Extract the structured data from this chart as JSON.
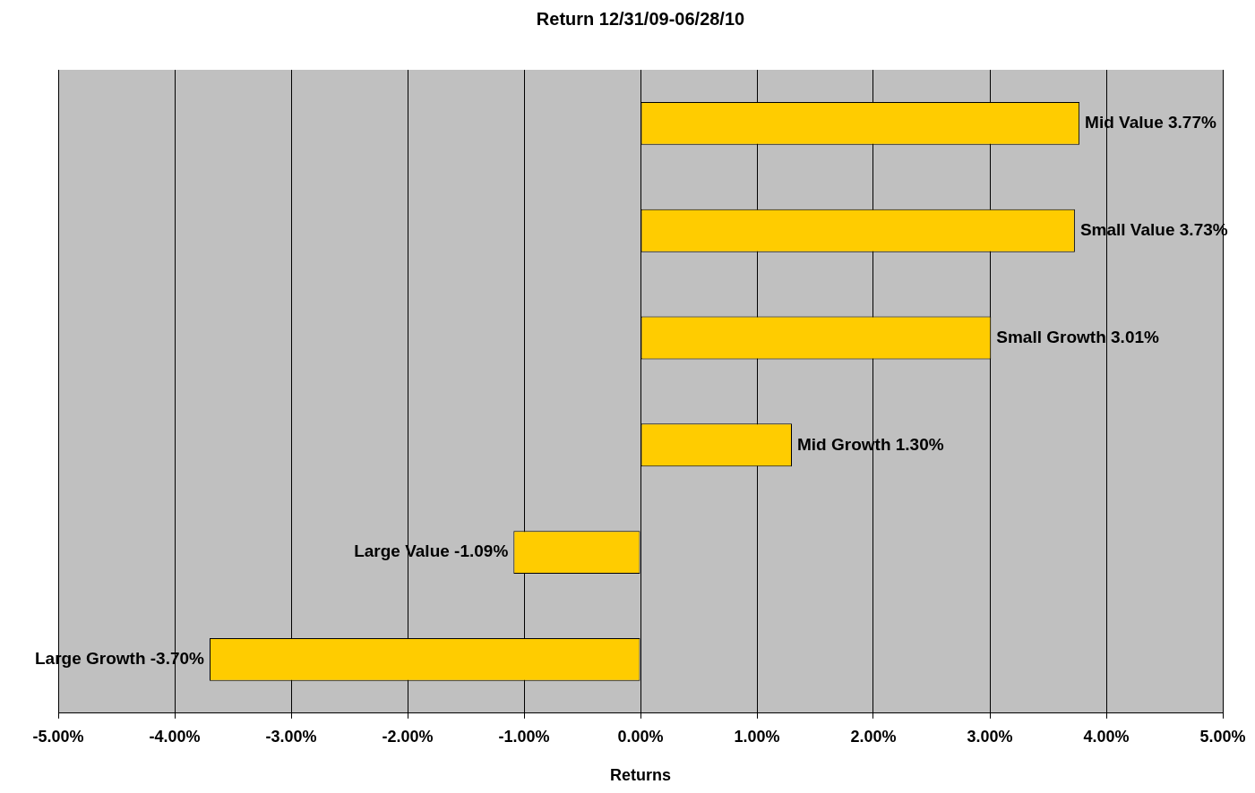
{
  "chart_data": {
    "type": "bar",
    "orientation": "horizontal",
    "title": "Return 12/31/09-06/28/10",
    "xlabel": "Returns",
    "categories": [
      "Mid Value",
      "Small Value",
      "Small Growth",
      "Mid Growth",
      "Large Value",
      "Large Growth"
    ],
    "values": [
      3.77,
      3.73,
      3.01,
      1.3,
      -1.09,
      -3.7
    ],
    "value_labels": [
      "3.77%",
      "3.73%",
      "3.01%",
      "1.30%",
      "-1.09%",
      "-3.70%"
    ],
    "color": "#ffcc00",
    "xlim": [
      -5,
      5
    ],
    "xticks": [
      {
        "value": -5,
        "label": "-5.00%"
      },
      {
        "value": -4,
        "label": "-4.00%"
      },
      {
        "value": -3,
        "label": "-3.00%"
      },
      {
        "value": -2,
        "label": "-2.00%"
      },
      {
        "value": -1,
        "label": "-1.00%"
      },
      {
        "value": 0,
        "label": "0.00%"
      },
      {
        "value": 1,
        "label": "1.00%"
      },
      {
        "value": 2,
        "label": "2.00%"
      },
      {
        "value": 3,
        "label": "3.00%"
      },
      {
        "value": 4,
        "label": "4.00%"
      },
      {
        "value": 5,
        "label": "5.00%"
      }
    ],
    "grid": "x",
    "tick_labels": "x",
    "legend": false
  }
}
